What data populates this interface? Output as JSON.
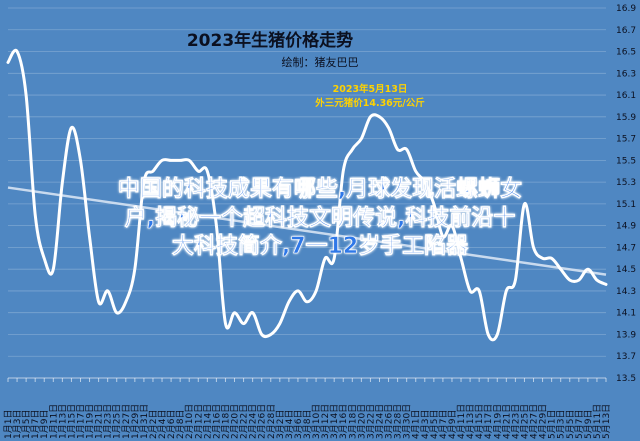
{
  "header": {
    "title": "2023年生猪价格走势",
    "credit": "绘制：猪友巴巴",
    "annotation_date": "2023年5月13日",
    "annotation_price": "外三元猪价14.36元/公斤"
  },
  "overlay_text": [
    "中国的科技成果有哪些,月球发现活螺蛳女",
    "户,揭秘一个超科技文明传说,科技前沿十",
    "大科技简介,7一12岁手工陷器"
  ],
  "colors": {
    "background": "#4f87c2",
    "line": "#ffffff",
    "trend": "#d6e3f3",
    "gridline": "#ffffff",
    "title": "#0b1020",
    "annotation": "#ffd200",
    "overlay_text": "#2f78e8"
  },
  "chart_data": {
    "type": "line",
    "title": "2023年生猪价格走势",
    "ylim": [
      13.5,
      16.9
    ],
    "yticks": [
      13.5,
      13.7,
      13.9,
      14.1,
      14.3,
      14.5,
      14.7,
      14.9,
      15.1,
      15.3,
      15.5,
      15.7,
      15.9,
      16.1,
      16.3,
      16.5,
      16.7,
      16.9
    ],
    "x_labels": [
      "1月1日",
      "1月3日",
      "1月5日",
      "1月7日",
      "1月9日",
      "1月11日",
      "1月13日",
      "1月15日",
      "1月17日",
      "1月19日",
      "1月21日",
      "1月23日",
      "1月25日",
      "1月27日",
      "1月29日",
      "1月31日",
      "2月2日",
      "2月4日",
      "2月6日",
      "2月8日",
      "2月10日",
      "2月12日",
      "2月14日",
      "2月16日",
      "2月18日",
      "2月20日",
      "2月22日",
      "2月24日",
      "2月26日",
      "2月28日",
      "3月2日",
      "3月4日",
      "3月6日",
      "3月8日",
      "3月10日",
      "3月12日",
      "3月14日",
      "3月16日",
      "3月18日",
      "3月20日",
      "3月22日",
      "3月24日",
      "3月26日",
      "3月28日",
      "3月30日",
      "4月1日",
      "4月3日",
      "4月5日",
      "4月7日",
      "4月9日",
      "4月11日",
      "4月13日",
      "4月15日",
      "4月17日",
      "4月19日",
      "4月21日",
      "4月23日",
      "4月25日",
      "4月27日",
      "4月29日",
      "5月1日",
      "5月3日",
      "5月5日",
      "5月7日",
      "5月9日",
      "5月11日",
      "5月13日"
    ],
    "series": [
      {
        "values": [
          16.4,
          16.5,
          16.1,
          15.0,
          14.6,
          14.5,
          15.3,
          15.8,
          15.5,
          14.8,
          14.2,
          14.3,
          14.1,
          14.2,
          14.5,
          15.3,
          15.4,
          15.5,
          15.5,
          15.5,
          15.5,
          15.4,
          15.4,
          14.9,
          14.0,
          14.1,
          14.0,
          14.1,
          13.9,
          13.9,
          14.0,
          14.2,
          14.3,
          14.2,
          14.3,
          14.6,
          14.6,
          15.4,
          15.6,
          15.7,
          15.9,
          15.9,
          15.8,
          15.6,
          15.6,
          15.4,
          15.3,
          15.1,
          14.8,
          14.9,
          14.6,
          14.3,
          14.3,
          13.9,
          13.9,
          14.3,
          14.4,
          15.1,
          14.7,
          14.6,
          14.6,
          14.5,
          14.4,
          14.4,
          14.5,
          14.4,
          14.36
        ]
      }
    ],
    "trendline": {
      "start": 15.25,
      "end": 14.45
    },
    "grid": "horizontal",
    "legend": "none"
  }
}
